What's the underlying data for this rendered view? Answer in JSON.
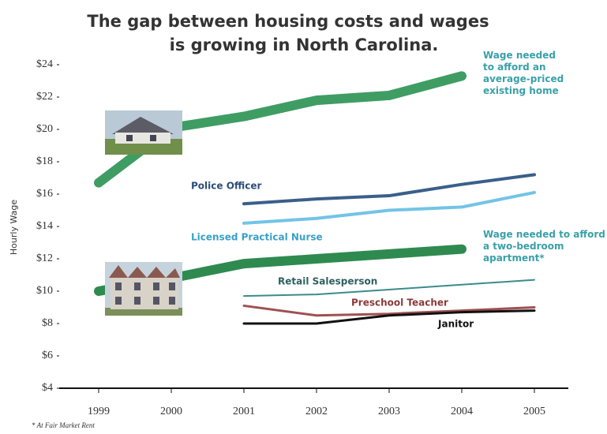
{
  "chart_data": {
    "type": "line",
    "title": [
      "The gap between housing costs and wages",
      "is growing in North Carolina."
    ],
    "y_label": "Hourly Wage",
    "footnote": "* At Fair Market Rent",
    "categories": [
      "1999",
      "2000",
      "2001",
      "2002",
      "2003",
      "2004",
      "2005"
    ],
    "ylim": [
      4,
      24
    ],
    "yticks": [
      {
        "value": 4,
        "label": "$4"
      },
      {
        "value": 6,
        "label": "$6"
      },
      {
        "value": 8,
        "label": "$8"
      },
      {
        "value": 10,
        "label": "$10"
      },
      {
        "value": 12,
        "label": "$12"
      },
      {
        "value": 14,
        "label": "$14"
      },
      {
        "value": 16,
        "label": "$16"
      },
      {
        "value": 18,
        "label": "$18"
      },
      {
        "value": 20,
        "label": "$20"
      },
      {
        "value": 22,
        "label": "$22"
      },
      {
        "value": 24,
        "label": "$24"
      }
    ],
    "series": [
      {
        "name": "Wage needed to afford an average-priced existing home",
        "color": "#3f9d63",
        "values": [
          16.7,
          20.1,
          20.8,
          21.8,
          22.1,
          23.3,
          null
        ]
      },
      {
        "name": "Police Officer",
        "color": "#3a5f8a",
        "values": [
          null,
          null,
          15.4,
          15.7,
          15.9,
          16.6,
          17.2
        ]
      },
      {
        "name": "Licensed Practical Nurse",
        "color": "#72c4e6",
        "values": [
          null,
          null,
          14.2,
          14.5,
          15.0,
          15.2,
          16.1
        ]
      },
      {
        "name": "Wage needed to afford a two-bedroom apartment*",
        "color": "#2f8a50",
        "values": [
          10.0,
          10.8,
          11.7,
          12.0,
          12.3,
          12.6,
          null
        ]
      },
      {
        "name": "Retail Salesperson",
        "color": "#3b8b8a",
        "values": [
          null,
          null,
          9.7,
          9.8,
          10.1,
          10.4,
          10.7
        ]
      },
      {
        "name": "Preschool Teacher",
        "color": "#a05050",
        "values": [
          null,
          null,
          9.1,
          8.5,
          8.6,
          8.8,
          9.0
        ]
      },
      {
        "name": "Janitor",
        "color": "#111111",
        "values": [
          null,
          null,
          8.0,
          8.0,
          8.5,
          8.7,
          8.8
        ]
      }
    ]
  }
}
